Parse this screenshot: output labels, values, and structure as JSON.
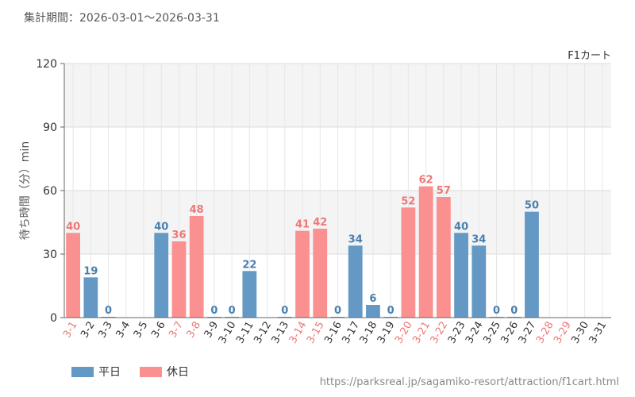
{
  "header": {
    "period": "集計期間：2026-03-01～2026-03-31"
  },
  "footer": {
    "url": "https://parksreal.jp/sagamiko-resort/attraction/f1cart.html"
  },
  "colors": {
    "weekday": "#6399c4",
    "holiday": "#fb9090",
    "weekday_label": "#4a7fae",
    "holiday_label": "#ee7777"
  },
  "chart_data": {
    "type": "bar",
    "title": "F1カート",
    "ylabel": "待ち時間（分）min",
    "xlabel": "",
    "ylim": [
      0,
      120
    ],
    "yticks": [
      0,
      30,
      60,
      90,
      120
    ],
    "categories": [
      "3-1",
      "3-2",
      "3-3",
      "3-4",
      "3-5",
      "3-6",
      "3-7",
      "3-8",
      "3-9",
      "3-10",
      "3-11",
      "3-12",
      "3-13",
      "3-14",
      "3-15",
      "3-16",
      "3-17",
      "3-18",
      "3-19",
      "3-20",
      "3-21",
      "3-22",
      "3-23",
      "3-24",
      "3-25",
      "3-26",
      "3-27",
      "3-28",
      "3-29",
      "3-30",
      "3-31"
    ],
    "values": [
      40,
      19,
      0,
      null,
      null,
      40,
      36,
      48,
      0,
      0,
      22,
      null,
      0,
      41,
      42,
      0,
      34,
      6,
      0,
      52,
      62,
      57,
      40,
      34,
      0,
      0,
      50,
      null,
      null,
      null,
      null
    ],
    "day_type": [
      "holiday",
      "weekday",
      "weekday",
      "weekday",
      "weekday",
      "weekday",
      "holiday",
      "holiday",
      "weekday",
      "weekday",
      "weekday",
      "weekday",
      "weekday",
      "holiday",
      "holiday",
      "weekday",
      "weekday",
      "weekday",
      "weekday",
      "holiday",
      "holiday",
      "holiday",
      "weekday",
      "weekday",
      "weekday",
      "weekday",
      "weekday",
      "holiday",
      "holiday",
      "weekday",
      "weekday"
    ],
    "legend": [
      {
        "key": "weekday",
        "label": "平日"
      },
      {
        "key": "holiday",
        "label": "休日"
      }
    ]
  }
}
